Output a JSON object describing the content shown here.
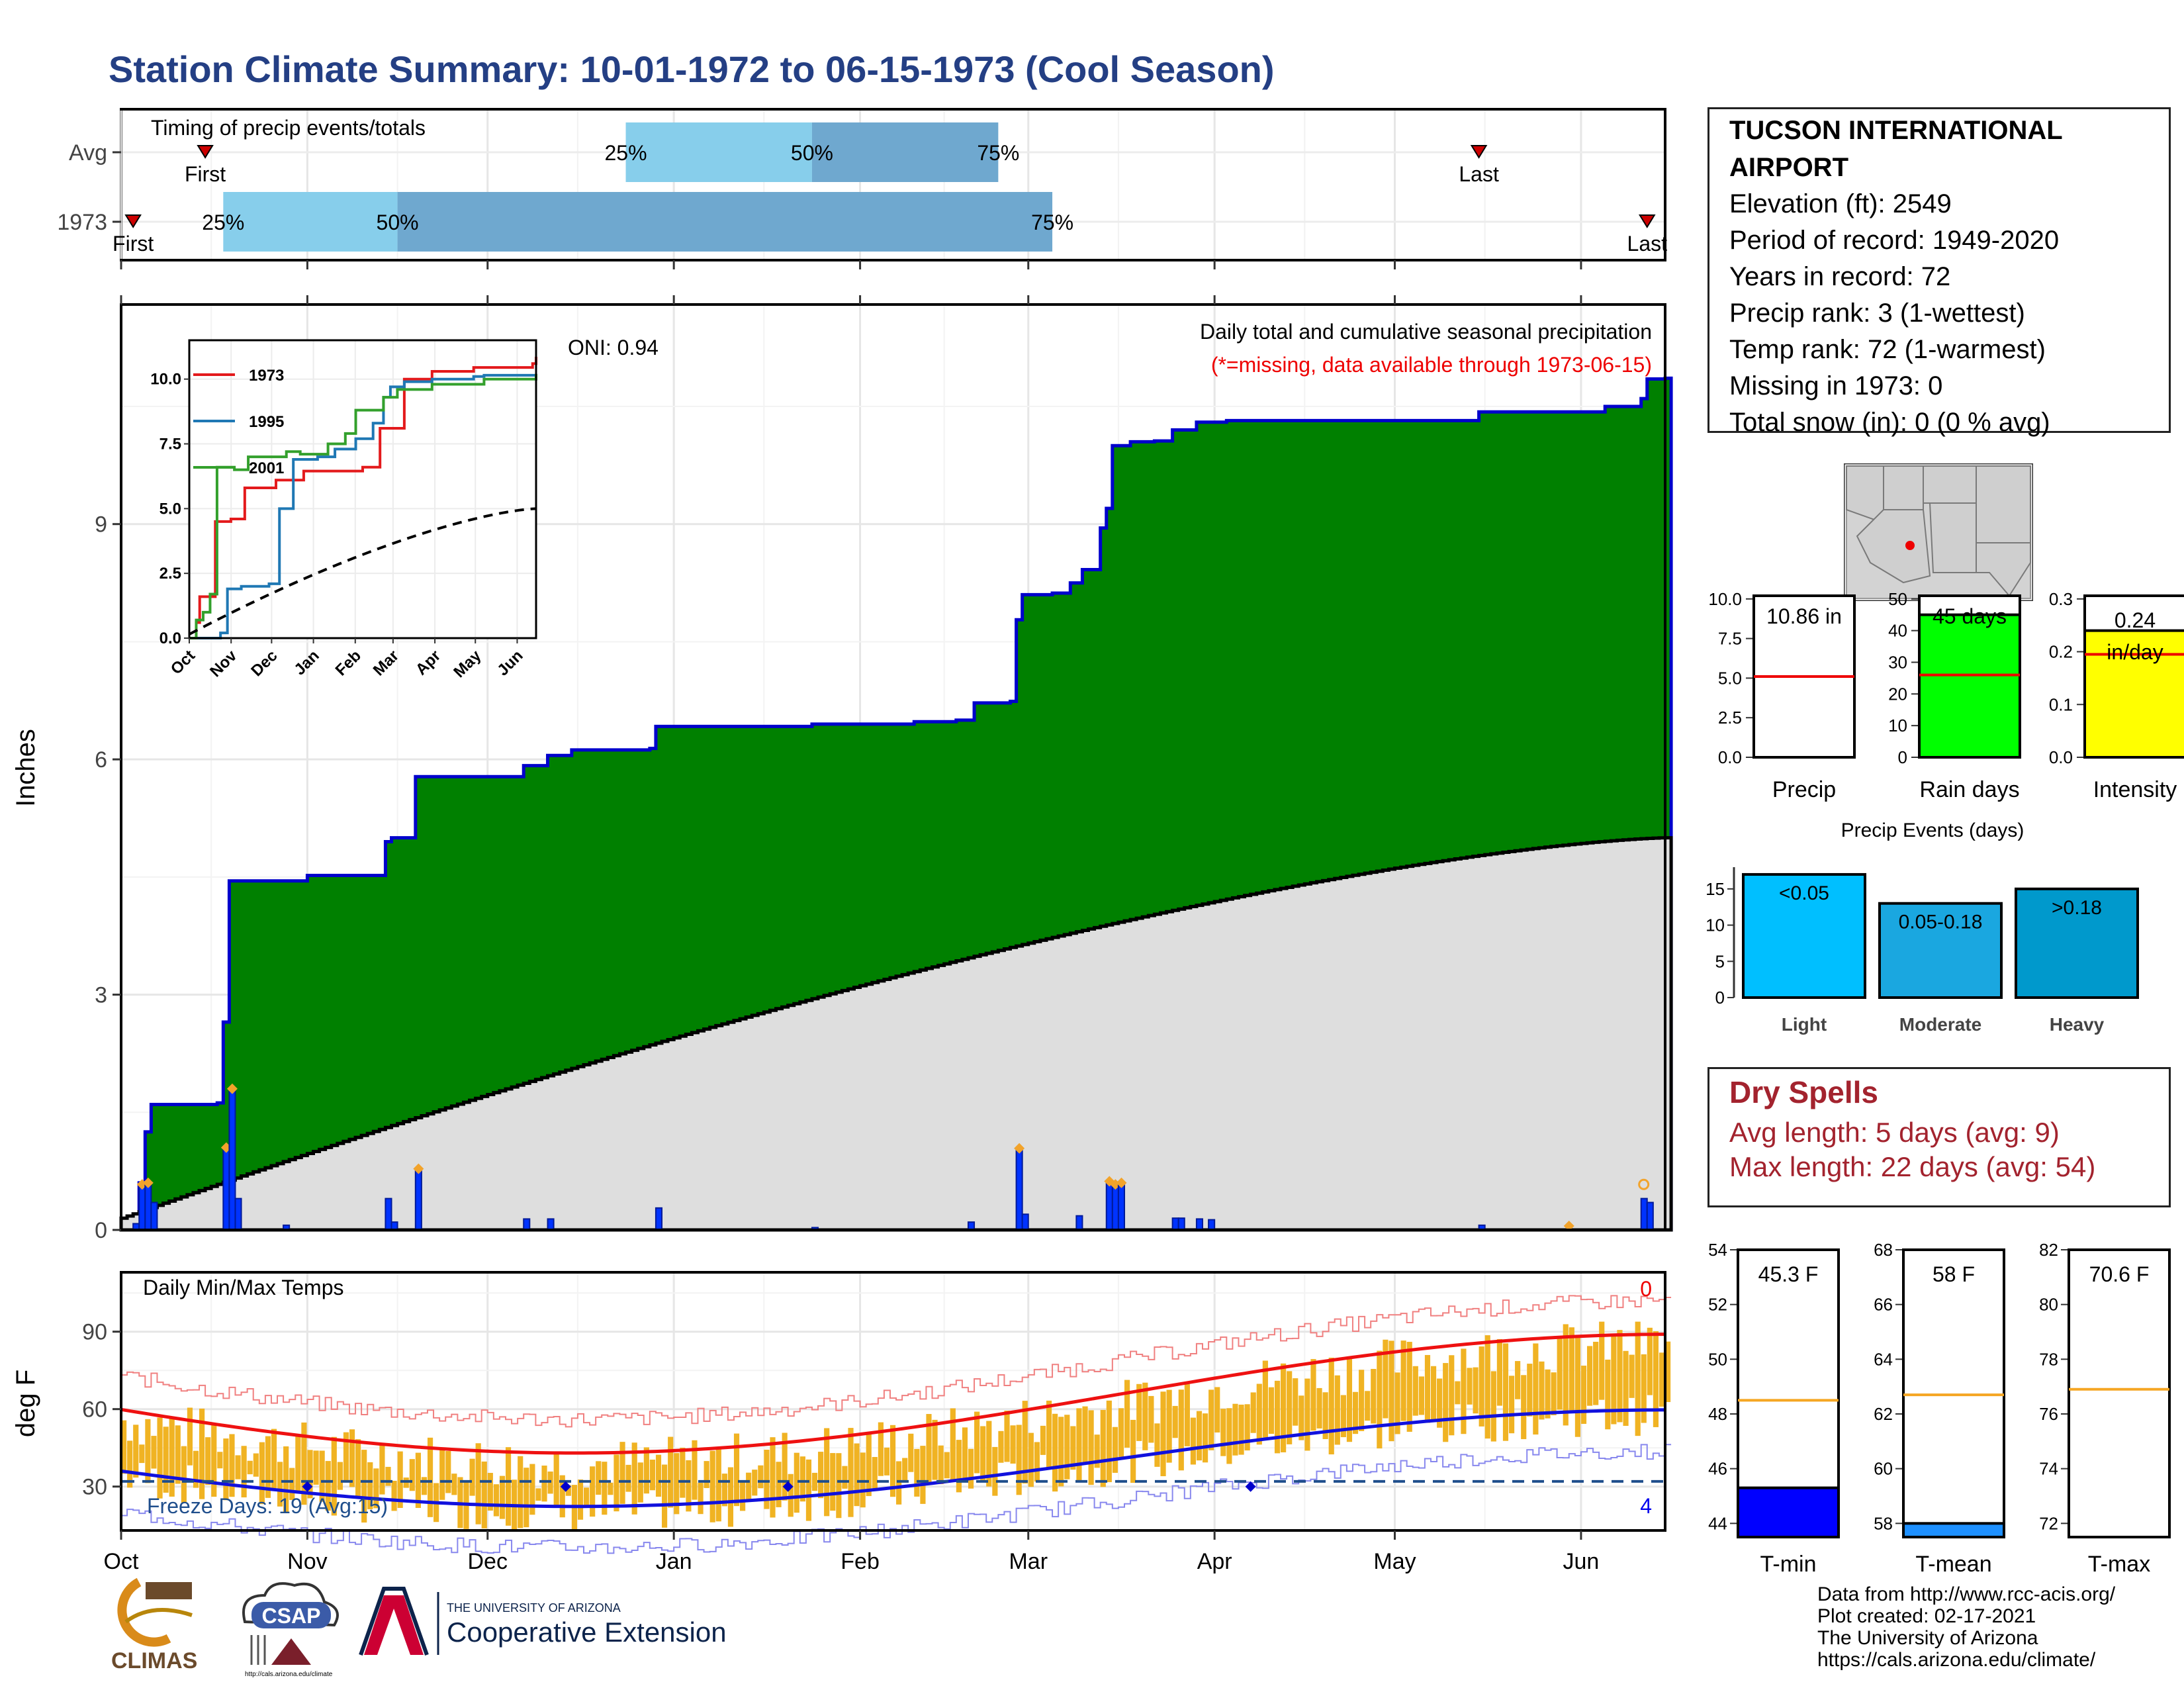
{
  "title": "Station Climate Summary: 10-01-1972 to 06-15-1973 (Cool Season)",
  "timing_panel": {
    "label": "Timing of precip events/totals",
    "rows": [
      {
        "name": "Avg",
        "q25_date": "1972-12-24",
        "q50_date": "1973-01-24",
        "q75_date": "1973-02-24",
        "first_date": "1972-10-15",
        "last_date": "1973-05-15"
      },
      {
        "name": "1973",
        "q25_date": "1972-10-18",
        "q50_date": "1972-11-16",
        "q75_date": "1973-03-05",
        "first_date": "1972-10-03",
        "last_date": "1973-06-12"
      }
    ],
    "q25_label": "25%",
    "q50_label": "50%",
    "q75_label": "75%",
    "first_label": "First",
    "last_label": "Last",
    "colors": {
      "q1": "#87ceeb",
      "q2": "#6fa8cf",
      "marker": "#cc0000"
    }
  },
  "months": [
    "Oct",
    "Nov",
    "Dec",
    "Jan",
    "Feb",
    "Mar",
    "Apr",
    "May",
    "Jun"
  ],
  "precip_panel": {
    "ylabel": "Inches",
    "yticks": [
      0,
      3,
      6,
      9
    ],
    "ylim": [
      0,
      11.8
    ],
    "note1": "Daily total and cumulative seasonal precipitation",
    "note2": "(*=missing, data available through 1973-06-15)",
    "oni_label": "ONI: 0.94",
    "cumulative_observed": [
      [
        "1972-10-01",
        0.0
      ],
      [
        "1972-10-03",
        0.1
      ],
      [
        "1972-10-04",
        0.6
      ],
      [
        "1972-10-05",
        1.25
      ],
      [
        "1972-10-06",
        1.6
      ],
      [
        "1972-10-17",
        1.62
      ],
      [
        "1972-10-18",
        2.65
      ],
      [
        "1972-10-19",
        4.45
      ],
      [
        "1972-11-01",
        4.52
      ],
      [
        "1972-11-13",
        4.52
      ],
      [
        "1972-11-14",
        4.95
      ],
      [
        "1972-11-15",
        5.0
      ],
      [
        "1972-11-19",
        5.78
      ],
      [
        "1972-12-07",
        5.92
      ],
      [
        "1972-12-11",
        6.05
      ],
      [
        "1972-12-15",
        6.12
      ],
      [
        "1972-12-28",
        6.14
      ],
      [
        "1972-12-29",
        6.42
      ],
      [
        "1973-01-24",
        6.45
      ],
      [
        "1973-02-10",
        6.48
      ],
      [
        "1973-02-17",
        6.5
      ],
      [
        "1973-02-20",
        6.72
      ],
      [
        "1973-02-26",
        6.74
      ],
      [
        "1973-02-27",
        7.78
      ],
      [
        "1973-02-28",
        8.1
      ],
      [
        "1973-03-05",
        8.12
      ],
      [
        "1973-03-08",
        8.25
      ],
      [
        "1973-03-10",
        8.42
      ],
      [
        "1973-03-13",
        8.95
      ],
      [
        "1973-03-14",
        9.2
      ],
      [
        "1973-03-15",
        10.0
      ],
      [
        "1973-03-18",
        10.05
      ],
      [
        "1973-03-22",
        10.06
      ],
      [
        "1973-03-25",
        10.2
      ],
      [
        "1973-03-29",
        10.3
      ],
      [
        "1973-04-03",
        10.32
      ],
      [
        "1973-05-15",
        10.43
      ],
      [
        "1973-06-05",
        10.5
      ],
      [
        "1973-06-11",
        10.6
      ],
      [
        "1973-06-12",
        10.85
      ],
      [
        "1973-06-15",
        10.86
      ]
    ],
    "daily_bars": [
      [
        "1972-10-03",
        0.08
      ],
      [
        "1972-10-04",
        0.58
      ],
      [
        "1972-10-05",
        0.6
      ],
      [
        "1972-10-06",
        0.35
      ],
      [
        "1972-10-18",
        1.05
      ],
      [
        "1972-10-19",
        1.8
      ],
      [
        "1972-10-20",
        0.4
      ],
      [
        "1972-10-28",
        0.06
      ],
      [
        "1972-11-14",
        0.4
      ],
      [
        "1972-11-15",
        0.1
      ],
      [
        "1972-11-19",
        0.78
      ],
      [
        "1972-12-07",
        0.14
      ],
      [
        "1972-12-11",
        0.14
      ],
      [
        "1972-12-29",
        0.28
      ],
      [
        "1973-01-24",
        0.03
      ],
      [
        "1973-02-19",
        0.1
      ],
      [
        "1973-02-27",
        1.04
      ],
      [
        "1973-02-28",
        0.2
      ],
      [
        "1973-03-09",
        0.18
      ],
      [
        "1973-03-14",
        0.62
      ],
      [
        "1973-03-15",
        0.58
      ],
      [
        "1973-03-16",
        0.6
      ],
      [
        "1973-03-25",
        0.15
      ],
      [
        "1973-03-26",
        0.15
      ],
      [
        "1973-03-29",
        0.14
      ],
      [
        "1973-03-31",
        0.13
      ],
      [
        "1973-05-15",
        0.06
      ],
      [
        "1973-06-11",
        0.4
      ],
      [
        "1973-06-12",
        0.35
      ]
    ],
    "avg_cumulative_end": 5.0,
    "colors": {
      "above": "#008000",
      "outline": "#0000cc",
      "avg_fill": "#dedede",
      "bar": "#0033ff",
      "marker": "#f2a32b"
    }
  },
  "inset": {
    "yticks": [
      "0.0",
      "2.5",
      "5.0",
      "7.5",
      "10.0"
    ],
    "xticks": [
      "Oct",
      "Nov",
      "Dec",
      "Jan",
      "Feb",
      "Mar",
      "Apr",
      "May",
      "Jun"
    ],
    "series": [
      {
        "name": "1973",
        "color": "#e31a1c"
      },
      {
        "name": "1995",
        "color": "#1f78b4"
      },
      {
        "name": "2001",
        "color": "#33a02c"
      }
    ]
  },
  "temp_panel": {
    "title": "Daily Min/Max Temps",
    "ylabel": "deg F",
    "yticks": [
      30,
      60,
      90
    ],
    "ylim": [
      13,
      113
    ],
    "freeze_label": "Freeze Days: 19 (Avg:15)",
    "count_top": "0",
    "count_bottom": "4",
    "freeze_line": 32,
    "colors": {
      "bars": "#f0b323",
      "avg_max": "#ee1111",
      "avg_min": "#1111dd",
      "rec_max": "#f08080",
      "rec_min": "#8888ee",
      "freeze": "#1f4e8c"
    }
  },
  "station": {
    "name": "TUCSON INTERNATIONAL AIRPORT",
    "lines": [
      "Elevation (ft): 2549",
      "Period of record: 1949-2020",
      "Years in record: 72",
      "Precip rank: 3 (1-wettest)",
      "Temp rank: 72 (1-warmest)",
      "Missing in 1973: 0",
      "Total snow (in): 0 (0 % avg)"
    ]
  },
  "mini_precip": [
    {
      "label": "Precip",
      "value_label": "10.86 in",
      "yticks": [
        "0.0",
        "2.5",
        "5.0",
        "7.5",
        "10.0"
      ],
      "ymax": 10.0,
      "value": 10.86,
      "avg": 5.1,
      "color": "#ffffff"
    },
    {
      "label": "Rain days",
      "value_label": "45 days",
      "yticks": [
        "0",
        "10",
        "20",
        "30",
        "40",
        "50"
      ],
      "ymax": 50,
      "value": 45,
      "avg": 26,
      "color": "#00ff00"
    },
    {
      "label": "Intensity",
      "value_label": "0.24 in/day",
      "yticks": [
        "0.0",
        "0.1",
        "0.2",
        "0.3"
      ],
      "ymax": 0.3,
      "value": 0.24,
      "avg": 0.195,
      "color": "#ffff00"
    }
  ],
  "precip_events": {
    "title": "Precip Events (days)",
    "yticks": [
      "0",
      "5",
      "10",
      "15"
    ],
    "categories": [
      "Light",
      "Moderate",
      "Heavy"
    ],
    "labels": [
      "<0.05",
      "0.05-0.18",
      ">0.18"
    ],
    "values": [
      17,
      13,
      15
    ],
    "colors": [
      "#00bfff",
      "#1aa7e0",
      "#0099cc"
    ]
  },
  "dry_spells": {
    "title": "Dry Spells",
    "avg_line": "Avg length: 5 days (avg: 9)",
    "max_line": "Max length: 22 days (avg: 54)"
  },
  "mini_temp": [
    {
      "label": "T-min",
      "value_label": "45.3 F",
      "yticks": [
        "44",
        "46",
        "48",
        "50",
        "52",
        "54"
      ],
      "ymin": 43.5,
      "ymax": 54,
      "value": 45.3,
      "avg": 48.5,
      "color": "#0000ff"
    },
    {
      "label": "T-mean",
      "value_label": "58 F",
      "yticks": [
        "58",
        "60",
        "62",
        "64",
        "66",
        "68"
      ],
      "ymin": 57.5,
      "ymax": 68,
      "value": 58.0,
      "avg": 62.7,
      "color": "#1e90ff"
    },
    {
      "label": "T-max",
      "value_label": "70.6 F",
      "yticks": [
        "72",
        "74",
        "76",
        "78",
        "80",
        "82"
      ],
      "ymin": 71.5,
      "ymax": 82,
      "value": 70.6,
      "avg": 76.9,
      "color": "#ffffff"
    }
  ],
  "credits": [
    "Data from http://www.rcc-acis.org/",
    "Plot created: 02-17-2021",
    "The University of Arizona",
    "https://cals.arizona.edu/climate/"
  ],
  "logos": {
    "climas": "CLIMAS",
    "csap": "CSAP",
    "csap_url": "http://cals.arizona.edu/climate",
    "ua_top": "THE UNIVERSITY OF ARIZONA",
    "ua_bottom": "Cooperative Extension"
  }
}
